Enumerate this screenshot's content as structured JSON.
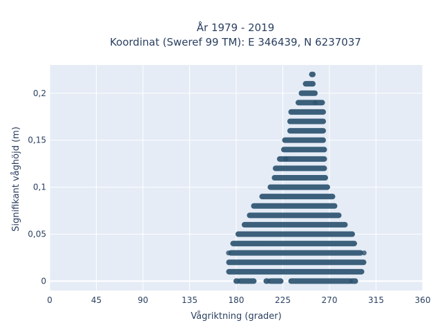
{
  "chart_data": {
    "type": "scatter",
    "title_lines": [
      "År 1979 - 2019",
      "Koordinat (Sweref 99 TM): E 346439, N 6237037"
    ],
    "xlabel": "Vågriktning (grader)",
    "ylabel": "Signifikant våghöjd (m)",
    "xlim": [
      0,
      360
    ],
    "ylim": [
      -0.01,
      0.23
    ],
    "x_ticks": [
      0,
      45,
      90,
      135,
      180,
      225,
      270,
      315,
      360
    ],
    "x_tick_labels": [
      "0",
      "45",
      "90",
      "135",
      "180",
      "225",
      "270",
      "315",
      "360"
    ],
    "y_ticks": [
      0,
      0.05,
      0.1,
      0.15,
      0.2
    ],
    "y_tick_labels": [
      "0",
      "0,05",
      "0,1",
      "0,15",
      "0,2"
    ],
    "grid": true,
    "background": "#e5ecf6",
    "marker_color": "#2e5470",
    "rows": [
      {
        "y": 0.0,
        "segments": [
          [
            180,
            181
          ],
          [
            184,
            197
          ],
          [
            209,
            210
          ],
          [
            213,
            223
          ],
          [
            233,
            290
          ],
          [
            292,
            295
          ]
        ]
      },
      {
        "y": 0.01,
        "segments": [
          [
            173,
            301
          ]
        ]
      },
      {
        "y": 0.02,
        "segments": [
          [
            173,
            303
          ]
        ]
      },
      {
        "y": 0.03,
        "segments": [
          [
            175,
            300
          ]
        ]
      },
      {
        "y": 0.04,
        "segments": [
          [
            177,
            294
          ]
        ]
      },
      {
        "y": 0.05,
        "segments": [
          [
            182,
            292
          ]
        ]
      },
      {
        "y": 0.06,
        "segments": [
          [
            188,
            285
          ]
        ]
      },
      {
        "y": 0.07,
        "segments": [
          [
            193,
            279
          ]
        ]
      },
      {
        "y": 0.08,
        "segments": [
          [
            197,
            275
          ]
        ]
      },
      {
        "y": 0.09,
        "segments": [
          [
            205,
            273
          ]
        ]
      },
      {
        "y": 0.1,
        "segments": [
          [
            213,
            268
          ]
        ]
      },
      {
        "y": 0.11,
        "segments": [
          [
            217,
            266
          ]
        ]
      },
      {
        "y": 0.12,
        "segments": [
          [
            218,
            265
          ]
        ]
      },
      {
        "y": 0.13,
        "segments": [
          [
            222,
            265
          ]
        ]
      },
      {
        "y": 0.14,
        "segments": [
          [
            226,
            265
          ]
        ]
      },
      {
        "y": 0.15,
        "segments": [
          [
            227,
            264
          ]
        ]
      },
      {
        "y": 0.16,
        "segments": [
          [
            232,
            264
          ]
        ]
      },
      {
        "y": 0.17,
        "segments": [
          [
            232,
            264
          ]
        ]
      },
      {
        "y": 0.18,
        "segments": [
          [
            233,
            264
          ]
        ]
      },
      {
        "y": 0.19,
        "segments": [
          [
            240,
            263
          ]
        ]
      },
      {
        "y": 0.2,
        "segments": [
          [
            243,
            256
          ]
        ]
      },
      {
        "y": 0.21,
        "segments": [
          [
            247,
            254
          ]
        ]
      },
      {
        "y": 0.22,
        "segments": [
          [
            253,
            254
          ]
        ]
      }
    ],
    "scattered_points": [
      {
        "x": 172.6,
        "y": 0.03
      },
      {
        "x": 303.5,
        "y": 0.03
      },
      {
        "x": 256.3,
        "y": 0.19
      },
      {
        "x": 228.0,
        "y": 0.13
      }
    ]
  }
}
